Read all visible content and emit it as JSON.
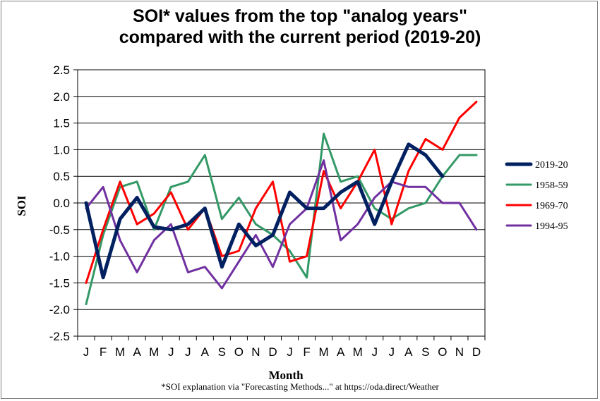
{
  "chart_data": {
    "type": "line",
    "title_line1": "SOI* values from the top \"analog years\"",
    "title_line2": "compared with the current period (2019-20)",
    "xlabel": "Month",
    "ylabel": "SOI",
    "footnote": "*SOI explanation via \"Forecasting Methods...\" at https://oda.direct/Weather",
    "ylim": [
      -2.5,
      2.5
    ],
    "yticks": [
      "2.5",
      "2.0",
      "1.5",
      "1.0",
      "0.5",
      "0.0",
      "-0.5",
      "-1.0",
      "-1.5",
      "-2.0",
      "-2.5"
    ],
    "categories": [
      "J",
      "F",
      "M",
      "A",
      "M",
      "J",
      "J",
      "A",
      "S",
      "O",
      "N",
      "D",
      "J",
      "F",
      "M",
      "A",
      "M",
      "J",
      "J",
      "A",
      "S",
      "O",
      "N",
      "D"
    ],
    "grid": true,
    "legend_position": "right",
    "series": [
      {
        "name": "2019-20",
        "color": "#002060",
        "values": [
          0.0,
          -1.4,
          -0.3,
          0.1,
          -0.45,
          -0.5,
          -0.4,
          -0.1,
          -1.2,
          -0.4,
          -0.8,
          -0.6,
          0.2,
          -0.1,
          -0.1,
          0.2,
          0.4,
          -0.4,
          0.4,
          1.1,
          0.9,
          0.5,
          null,
          null
        ]
      },
      {
        "name": "1958-59",
        "color": "#339966",
        "values": [
          -1.9,
          -0.6,
          0.3,
          0.4,
          -0.5,
          0.3,
          0.4,
          0.9,
          -0.3,
          0.1,
          -0.4,
          -0.6,
          -0.9,
          -1.4,
          1.3,
          0.4,
          0.5,
          -0.1,
          -0.3,
          -0.1,
          0.0,
          0.5,
          0.9,
          0.9
        ]
      },
      {
        "name": "1969-70",
        "color": "#ff0000",
        "values": [
          -1.5,
          -0.5,
          0.4,
          -0.4,
          -0.2,
          0.2,
          -0.5,
          -0.1,
          -1.0,
          -0.9,
          -0.1,
          0.4,
          -1.1,
          -1.0,
          0.6,
          -0.1,
          0.4,
          1.0,
          -0.4,
          0.6,
          1.2,
          1.0,
          1.6,
          1.9
        ]
      },
      {
        "name": "1994-95",
        "color": "#7030a0",
        "values": [
          -0.1,
          0.3,
          -0.7,
          -1.3,
          -0.7,
          -0.4,
          -1.3,
          -1.2,
          -1.6,
          -1.1,
          -0.6,
          -1.2,
          -0.4,
          -0.1,
          0.8,
          -0.7,
          -0.4,
          0.1,
          0.4,
          0.3,
          0.3,
          0.0,
          0.0,
          -0.5
        ]
      }
    ]
  }
}
